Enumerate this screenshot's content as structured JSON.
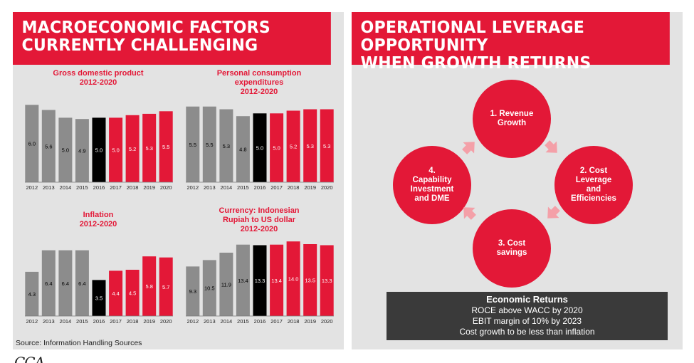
{
  "left_panel": {
    "title": "MACROECONOMIC FACTORS\nCURRENTLY CHALLENGING",
    "source": "Source: Information Handling Sources"
  },
  "right_panel": {
    "title": "OPERATIONAL LEVERAGE OPPORTUNITY\nWHEN GROWTH RETURNS",
    "steps": [
      {
        "label": "1. Revenue\nGrowth"
      },
      {
        "label": "2. Cost\nLeverage\nand\nEfficiencies"
      },
      {
        "label": "3. Cost\nsavings"
      },
      {
        "label": "4.\nCapability\nInvestment\nand DME"
      }
    ],
    "returns": {
      "title": "Economic Returns",
      "lines": [
        "ROCE above WACC by 2020",
        "EBIT margin of 10% by 2023",
        "Cost growth to be less than inflation"
      ]
    }
  },
  "logo_text": "CCA",
  "colors": {
    "historical": "#8c8c8c",
    "current": "#000000",
    "forecast": "#e31837",
    "brand_red": "#e31837"
  },
  "chart_data": [
    {
      "type": "bar",
      "title": "Gross domestic product\n2012-2020",
      "categories": [
        "2012",
        "2013",
        "2014",
        "2015",
        "2016",
        "2017",
        "2018",
        "2019",
        "2020"
      ],
      "values": [
        6.0,
        5.6,
        5.0,
        4.9,
        5.0,
        5.0,
        5.2,
        5.3,
        5.5
      ],
      "labels": [
        "6.0",
        "5.6",
        "5.0",
        "4.9",
        "5.0",
        "5.0",
        "5.2",
        "5.3",
        "5.5"
      ],
      "ylim": [
        0,
        6.4
      ],
      "bar_kinds": [
        "historical",
        "historical",
        "historical",
        "historical",
        "current",
        "forecast",
        "forecast",
        "forecast",
        "forecast"
      ]
    },
    {
      "type": "bar",
      "title": "Personal consumption\nexpenditures\n2012-2020",
      "categories": [
        "2012",
        "2013",
        "2014",
        "2015",
        "2016",
        "2017",
        "2018",
        "2019",
        "2020"
      ],
      "values": [
        5.5,
        5.5,
        5.3,
        4.8,
        5.0,
        5.0,
        5.2,
        5.3,
        5.3
      ],
      "labels": [
        "5.5",
        "5.5",
        "5.3",
        "4.8",
        "5.0",
        "5.0",
        "5.2",
        "5.3",
        "5.3"
      ],
      "ylim": [
        0,
        6.0
      ],
      "bar_kinds": [
        "historical",
        "historical",
        "historical",
        "historical",
        "current",
        "forecast",
        "forecast",
        "forecast",
        "forecast"
      ]
    },
    {
      "type": "bar",
      "title": "Inflation\n2012-2020",
      "categories": [
        "2012",
        "2013",
        "2014",
        "2015",
        "2016",
        "2017",
        "2018",
        "2019",
        "2020"
      ],
      "values": [
        4.3,
        6.4,
        6.4,
        6.4,
        3.5,
        4.4,
        4.5,
        5.8,
        5.7
      ],
      "labels": [
        "4.3",
        "6.4",
        "6.4",
        "6.4",
        "3.5",
        "4.4",
        "4.5",
        "5.8",
        "5.7"
      ],
      "ylim": [
        0,
        7.2
      ],
      "bar_kinds": [
        "historical",
        "historical",
        "historical",
        "historical",
        "current",
        "forecast",
        "forecast",
        "forecast",
        "forecast"
      ]
    },
    {
      "type": "bar",
      "title": "Currency: Indonesian\nRupiah to US dollar\n2012-2020",
      "categories": [
        "2012",
        "2013",
        "2014",
        "2015",
        "2016",
        "2017",
        "2018",
        "2019",
        "2020"
      ],
      "values": [
        9.3,
        10.5,
        11.9,
        13.4,
        13.3,
        13.4,
        14.0,
        13.5,
        13.3
      ],
      "labels": [
        "9.3",
        "10.5",
        "11.9",
        "13.4",
        "13.3",
        "13.4",
        "14.0",
        "13.5",
        "13.3"
      ],
      "ylim": [
        0,
        14.7
      ],
      "bar_kinds": [
        "historical",
        "historical",
        "historical",
        "historical",
        "current",
        "forecast",
        "forecast",
        "forecast",
        "forecast"
      ]
    }
  ]
}
